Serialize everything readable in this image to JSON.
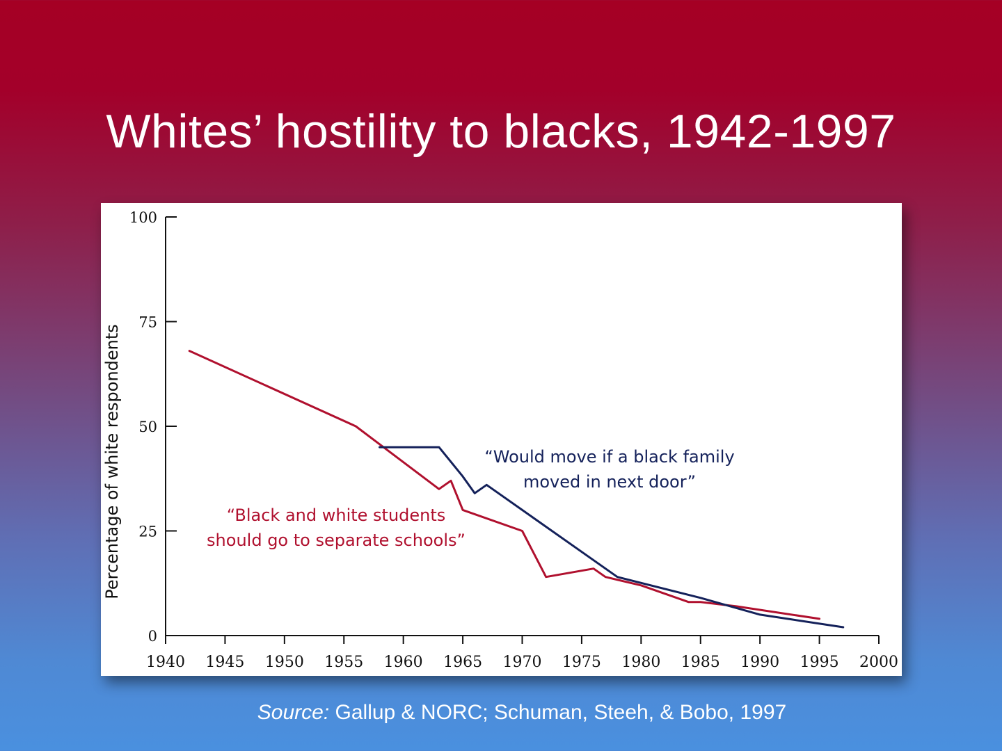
{
  "slide": {
    "title": "Whites’ hostility to blacks, 1942-1997",
    "source_label": "Source:",
    "source_text": " Gallup & NORC; Schuman, Steeh, & Bobo, 1997"
  },
  "colors": {
    "background_top": "#a50024",
    "background_bottom": "#4a90df",
    "series_move": "#14215a",
    "series_schools": "#b0102e"
  },
  "chart_data": {
    "type": "line",
    "title": "",
    "xlabel": "",
    "ylabel": "Percentage of white respondents",
    "xlim": [
      1940,
      2000
    ],
    "ylim": [
      0,
      100
    ],
    "xticks": [
      1940,
      1945,
      1950,
      1955,
      1960,
      1965,
      1970,
      1975,
      1980,
      1985,
      1990,
      1995,
      2000
    ],
    "yticks": [
      0,
      25,
      50,
      75,
      100
    ],
    "grid": false,
    "legend": "none",
    "series": [
      {
        "name": "“Black and white students should go to separate schools”",
        "label_lines": [
          "“Black and white students",
          "should go to separate schools”"
        ],
        "color": "#b0102e",
        "points": [
          [
            1942,
            68
          ],
          [
            1956,
            50
          ],
          [
            1963,
            35
          ],
          [
            1964,
            37
          ],
          [
            1965,
            30
          ],
          [
            1970,
            25
          ],
          [
            1972,
            14
          ],
          [
            1976,
            16
          ],
          [
            1977,
            14
          ],
          [
            1980,
            12
          ],
          [
            1984,
            8
          ],
          [
            1985,
            8
          ],
          [
            1988,
            7
          ],
          [
            1995,
            4
          ]
        ]
      },
      {
        "name": "“Would move if a black family moved in next door”",
        "label_lines": [
          "“Would move if a black family",
          "moved in next door”"
        ],
        "color": "#14215a",
        "points": [
          [
            1958,
            45
          ],
          [
            1963,
            45
          ],
          [
            1965,
            38
          ],
          [
            1966,
            34
          ],
          [
            1967,
            36
          ],
          [
            1970,
            30
          ],
          [
            1978,
            14
          ],
          [
            1985,
            9
          ],
          [
            1990,
            5
          ],
          [
            1997,
            2
          ]
        ]
      }
    ]
  }
}
